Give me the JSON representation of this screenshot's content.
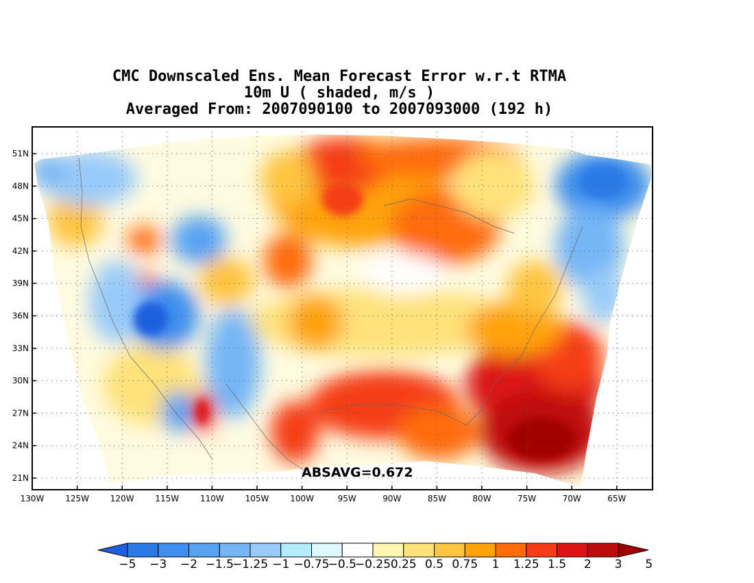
{
  "title": {
    "line1": "CMC Downscaled Ens. Mean Forecast Error w.r.t RTMA",
    "line2": "10m U ( shaded, m/s )",
    "line3": "Averaged From: 2007090100 to 2007093000 (192 h)"
  },
  "annotation": {
    "absavg": "ABSAVG=0.672"
  },
  "axes": {
    "lat_labels": [
      "51N",
      "48N",
      "45N",
      "42N",
      "39N",
      "36N",
      "33N",
      "30N",
      "27N",
      "24N",
      "21N"
    ],
    "lon_labels": [
      "130W",
      "125W",
      "120W",
      "115W",
      "110W",
      "105W",
      "100W",
      "95W",
      "90W",
      "85W",
      "80W",
      "75W",
      "70W",
      "65W"
    ],
    "lat_range": [
      20,
      53
    ],
    "lon_range": [
      -130,
      -61
    ],
    "grid": "dotted"
  },
  "colorbar": {
    "colors": [
      "#1e5fe0",
      "#2a7ae6",
      "#3d8eee",
      "#56a3f2",
      "#75b6f6",
      "#98cbfa",
      "#b4ecfb",
      "#def9fe",
      "#ffffff",
      "#fff6b0",
      "#ffe27a",
      "#ffc440",
      "#ffa30c",
      "#ff6c0a",
      "#f53c16",
      "#dd1414",
      "#be0b0b",
      "#a10000"
    ],
    "labels": [
      "−5",
      "−3",
      "−2",
      "−1.5",
      "−1.25",
      "−1",
      "−0.75",
      "−0.5",
      "−0.25",
      "0.25",
      "0.5",
      "0.75",
      "1",
      "1.25",
      "1.5",
      "2",
      "3",
      "5"
    ]
  }
}
